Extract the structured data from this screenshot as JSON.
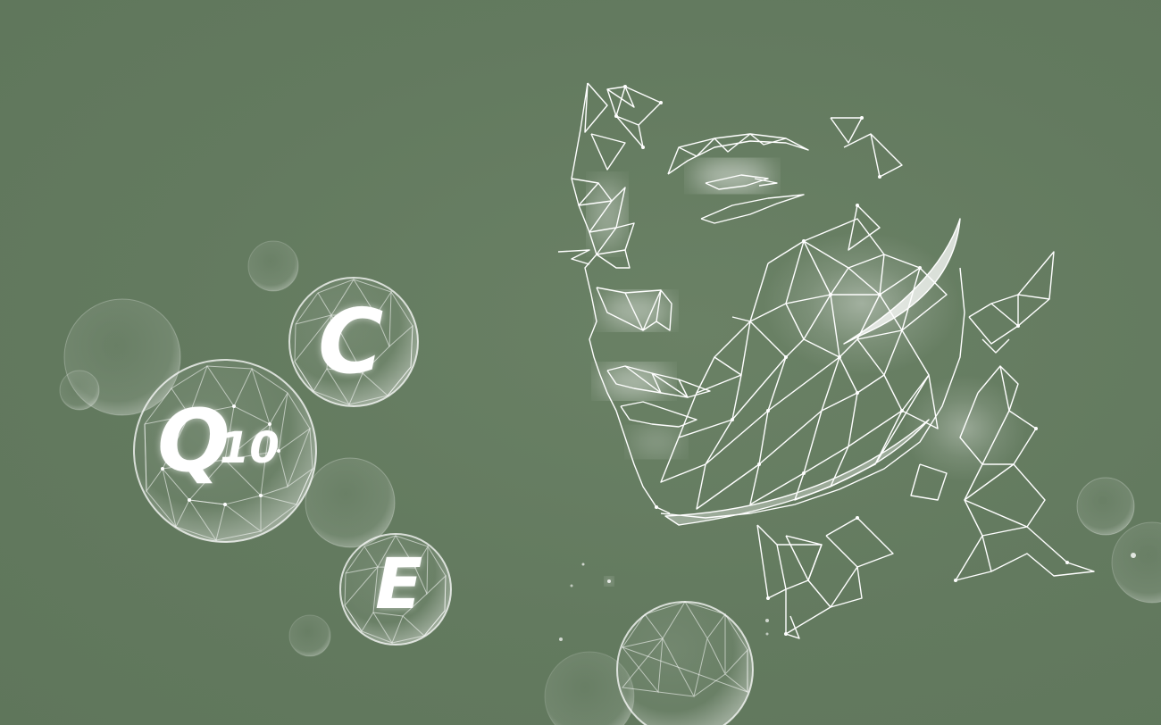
{
  "colors": {
    "background": "#637a5f",
    "line": "#ffffff"
  },
  "bubbles": {
    "c": "C",
    "q": "Q",
    "q_subscript": "10",
    "e": "E"
  },
  "icons": {
    "face": "polygonal-wireframe-face-icon",
    "molecule": "polygonal-sphere-icon"
  }
}
